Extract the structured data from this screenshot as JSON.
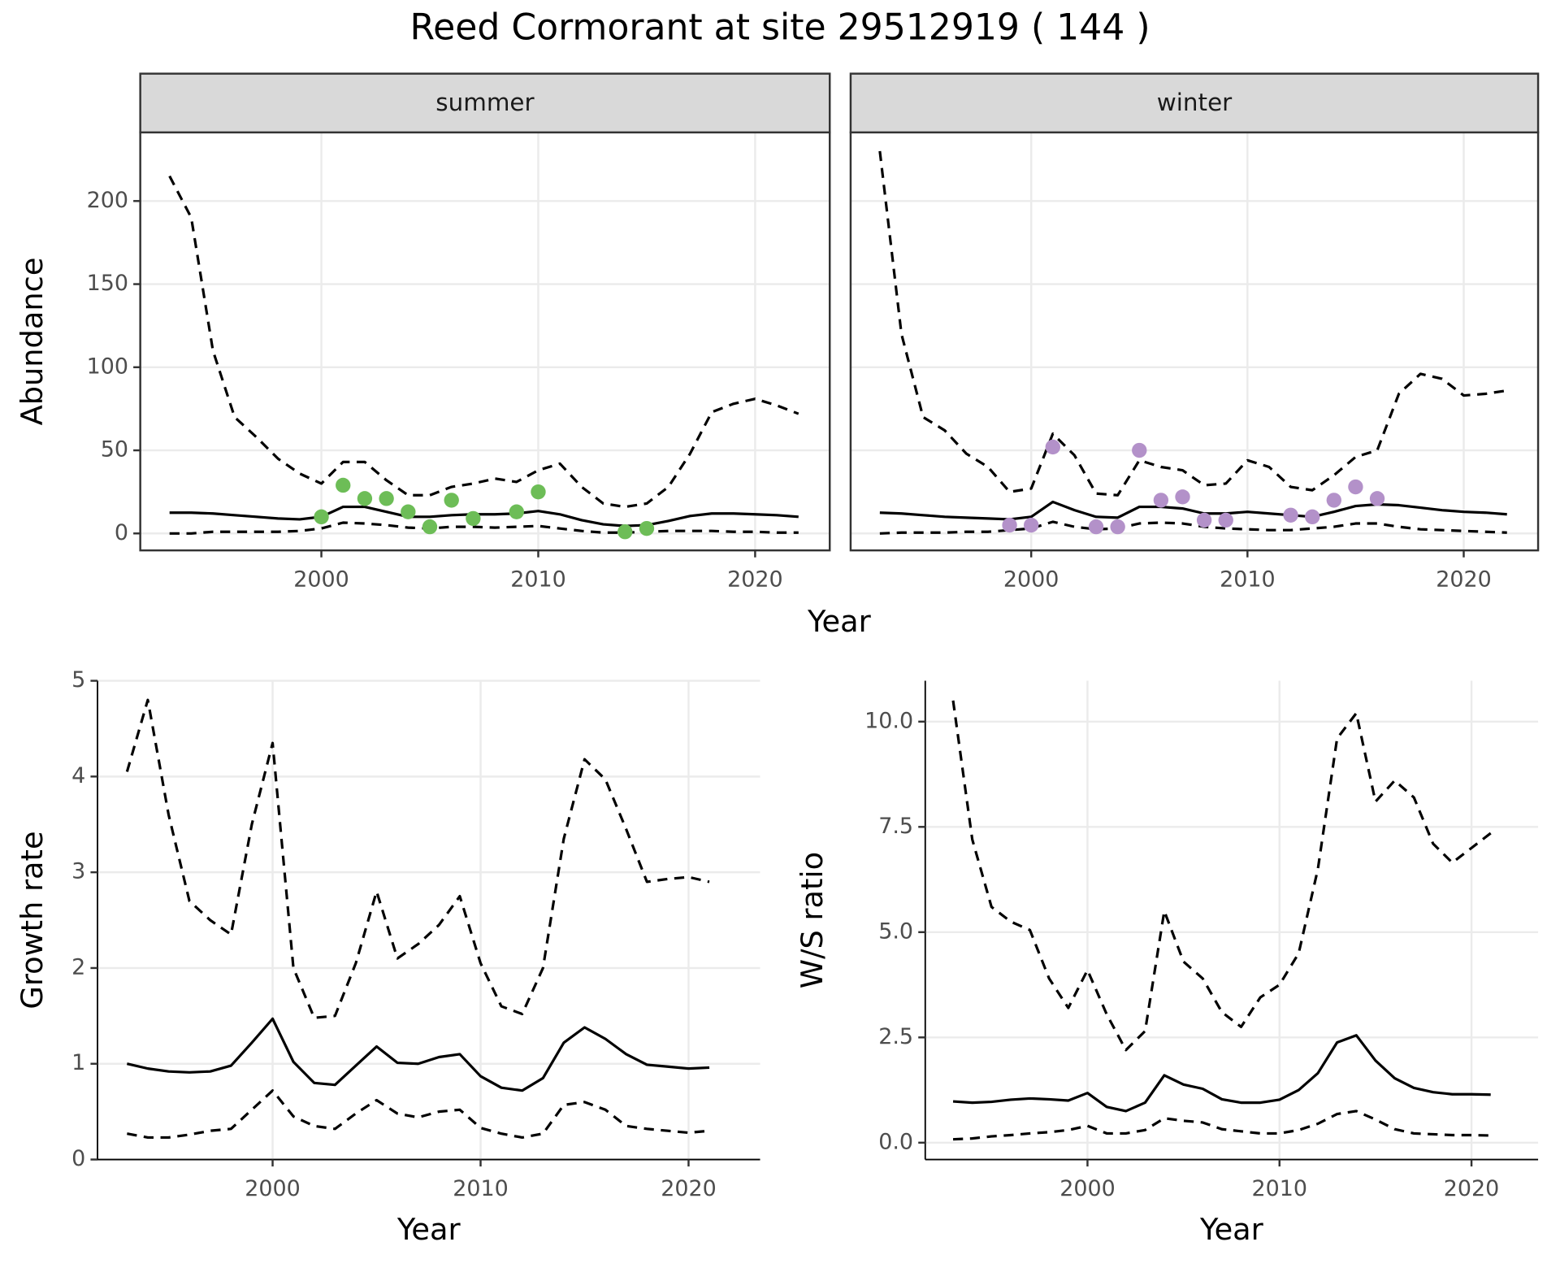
{
  "title": "Reed Cormorant at site 29512919 ( 144 )",
  "chart_data": [
    {
      "type": "line",
      "y_label": "Abundance",
      "x_label": "Year",
      "border": true,
      "grid": true,
      "xlim": [
        1991.65,
        2023.44
      ],
      "ylim": [
        -10.2,
        241.3
      ],
      "xticks": [
        2000,
        2010,
        2020
      ],
      "yticks": [
        0,
        50,
        100,
        150,
        200
      ],
      "facets": [
        {
          "label": "summer",
          "x": [
            1993,
            1994,
            1995,
            1996,
            1997,
            1998,
            1999,
            2000,
            2001,
            2002,
            2003,
            2004,
            2005,
            2006,
            2007,
            2008,
            2009,
            2010,
            2011,
            2012,
            2013,
            2014,
            2015,
            2016,
            2017,
            2018,
            2019,
            2020,
            2021,
            2022
          ],
          "series": [
            {
              "style": "solid",
              "color": "#000000",
              "values": [
                12.5,
                12.5,
                12,
                11,
                10,
                9,
                8.5,
                10,
                16,
                16,
                13,
                10,
                10,
                11,
                11.5,
                11.5,
                12,
                13.5,
                11.5,
                8,
                5.5,
                4.5,
                5,
                7.5,
                10.5,
                12,
                12,
                11.5,
                11,
                10
              ]
            },
            {
              "style": "dashed",
              "color": "#000000",
              "values": [
                215,
                190,
                110,
                70,
                58,
                45,
                36,
                30,
                43,
                43,
                32,
                23,
                23,
                28,
                30,
                33,
                31,
                38,
                42,
                28,
                18,
                16,
                18,
                28,
                48,
                73,
                78,
                81,
                77,
                72
              ]
            },
            {
              "style": "dashed",
              "color": "#000000",
              "values": [
                0,
                0,
                1,
                1,
                1,
                1,
                1.5,
                3,
                6.5,
                6,
                5,
                3.5,
                3,
                4,
                4,
                3.5,
                4,
                4.5,
                3,
                1.5,
                0.5,
                0.5,
                1,
                1.5,
                1.5,
                1.5,
                1,
                1,
                0.5,
                0.5
              ]
            }
          ],
          "points": {
            "color": "#6dbd57",
            "x": [
              2000,
              2001,
              2002,
              2003,
              2004,
              2005,
              2006,
              2007,
              2009,
              2010,
              2014,
              2015
            ],
            "values": [
              10,
              29,
              21,
              21,
              13,
              4,
              20,
              9,
              13,
              25,
              1,
              3
            ]
          }
        },
        {
          "label": "winter",
          "x": [
            1993,
            1994,
            1995,
            1996,
            1997,
            1998,
            1999,
            2000,
            2001,
            2002,
            2003,
            2004,
            2005,
            2006,
            2007,
            2008,
            2009,
            2010,
            2011,
            2012,
            2013,
            2014,
            2015,
            2016,
            2017,
            2018,
            2019,
            2020,
            2021,
            2022
          ],
          "series": [
            {
              "style": "solid",
              "color": "#000000",
              "values": [
                12.5,
                12,
                11,
                10,
                9.5,
                9,
                8.5,
                10,
                19,
                14,
                10,
                9.5,
                16,
                16,
                15,
                12,
                12,
                13,
                12,
                11,
                10,
                13,
                16.5,
                17.5,
                17,
                15.5,
                14,
                13,
                12.5,
                11.5
              ]
            },
            {
              "style": "dashed",
              "color": "#000000",
              "values": [
                230,
                120,
                70,
                62,
                48,
                40,
                25,
                27,
                60,
                47,
                24,
                23,
                44,
                40,
                38,
                29,
                30,
                44,
                40,
                28,
                26,
                35,
                46,
                50,
                84,
                96,
                93,
                83,
                84,
                86
              ]
            },
            {
              "style": "dashed",
              "color": "#000000",
              "values": [
                0,
                0.5,
                0.5,
                0.5,
                1,
                1,
                2,
                3,
                7,
                4,
                2.5,
                3,
                6,
                6.5,
                6,
                4,
                3,
                2.5,
                2,
                2,
                3,
                4,
                6,
                6,
                4,
                2.5,
                2,
                1.5,
                1,
                0.5
              ]
            }
          ],
          "points": {
            "color": "#b391c9",
            "x": [
              1999,
              2000,
              2001,
              2003,
              2004,
              2005,
              2006,
              2007,
              2008,
              2009,
              2012,
              2013,
              2014,
              2015,
              2016
            ],
            "values": [
              5,
              5,
              52,
              4,
              4,
              50,
              20,
              22,
              8,
              8,
              11,
              10,
              20,
              28,
              21
            ]
          }
        }
      ]
    },
    {
      "type": "line",
      "y_label": "Growth rate",
      "x_label": "Year",
      "border": false,
      "grid": true,
      "xlim": [
        1991.58,
        2023.44
      ],
      "ylim": [
        0,
        5
      ],
      "xticks": [
        2000,
        2010,
        2020
      ],
      "yticks": [
        0,
        1,
        2,
        3,
        4,
        5
      ],
      "x": [
        1993,
        1994,
        1995,
        1996,
        1997,
        1998,
        1999,
        2000,
        2001,
        2002,
        2003,
        2004,
        2005,
        2006,
        2007,
        2008,
        2009,
        2010,
        2011,
        2012,
        2013,
        2014,
        2015,
        2016,
        2017,
        2018,
        2019,
        2020,
        2021
      ],
      "series": [
        {
          "style": "solid",
          "color": "#000000",
          "values": [
            1.0,
            0.95,
            0.92,
            0.91,
            0.92,
            0.98,
            1.22,
            1.47,
            1.02,
            0.8,
            0.78,
            0.98,
            1.18,
            1.01,
            1.0,
            1.07,
            1.1,
            0.87,
            0.75,
            0.72,
            0.85,
            1.22,
            1.38,
            1.26,
            1.1,
            0.99,
            0.97,
            0.95,
            0.96
          ]
        },
        {
          "style": "dashed",
          "color": "#000000",
          "values": [
            4.05,
            4.8,
            3.6,
            2.7,
            2.5,
            2.35,
            3.5,
            4.35,
            2.0,
            1.48,
            1.5,
            2.05,
            2.8,
            2.1,
            2.25,
            2.45,
            2.75,
            2.05,
            1.6,
            1.52,
            2.0,
            3.35,
            4.18,
            3.97,
            3.45,
            2.9,
            2.93,
            2.95,
            2.9
          ]
        },
        {
          "style": "dashed",
          "color": "#000000",
          "values": [
            0.27,
            0.23,
            0.23,
            0.26,
            0.3,
            0.32,
            0.52,
            0.72,
            0.45,
            0.35,
            0.32,
            0.48,
            0.62,
            0.48,
            0.44,
            0.5,
            0.52,
            0.33,
            0.27,
            0.23,
            0.27,
            0.57,
            0.6,
            0.52,
            0.35,
            0.32,
            0.3,
            0.28,
            0.3
          ]
        }
      ]
    },
    {
      "type": "line",
      "y_label": "W/S ratio",
      "x_label": "Year",
      "border": false,
      "grid": true,
      "xlim": [
        1991.55,
        2023.47
      ],
      "ylim": [
        -0.4,
        10.97
      ],
      "xticks": [
        2000,
        2010,
        2020
      ],
      "yticks": [
        {
          "value": 0,
          "label": "0.0"
        },
        2.5,
        {
          "value": 5,
          "label": "5.0"
        },
        7.5,
        {
          "value": 10,
          "label": "10.0"
        }
      ],
      "x": [
        1993,
        1994,
        1995,
        1996,
        1997,
        1998,
        1999,
        2000,
        2001,
        2002,
        2003,
        2004,
        2005,
        2006,
        2007,
        2008,
        2009,
        2010,
        2011,
        2012,
        2013,
        2014,
        2015,
        2016,
        2017,
        2018,
        2019,
        2020,
        2021
      ],
      "series": [
        {
          "style": "solid",
          "color": "#000000",
          "values": [
            0.98,
            0.95,
            0.97,
            1.02,
            1.05,
            1.03,
            1.0,
            1.18,
            0.85,
            0.75,
            0.95,
            1.6,
            1.38,
            1.28,
            1.03,
            0.95,
            0.95,
            1.02,
            1.25,
            1.65,
            2.38,
            2.55,
            1.95,
            1.53,
            1.3,
            1.2,
            1.15,
            1.15,
            1.14
          ]
        },
        {
          "style": "dashed",
          "color": "#000000",
          "values": [
            10.5,
            7.2,
            5.6,
            5.25,
            5.05,
            3.9,
            3.2,
            4.1,
            3.05,
            2.2,
            2.65,
            5.5,
            4.3,
            3.9,
            3.1,
            2.75,
            3.45,
            3.75,
            4.5,
            6.5,
            9.6,
            10.2,
            8.1,
            8.6,
            8.2,
            7.1,
            6.65,
            7.0,
            7.35
          ]
        },
        {
          "style": "dashed",
          "color": "#000000",
          "values": [
            0.08,
            0.1,
            0.15,
            0.18,
            0.22,
            0.25,
            0.3,
            0.4,
            0.22,
            0.22,
            0.3,
            0.58,
            0.52,
            0.48,
            0.32,
            0.27,
            0.22,
            0.22,
            0.3,
            0.45,
            0.68,
            0.75,
            0.55,
            0.32,
            0.22,
            0.2,
            0.18,
            0.18,
            0.17
          ]
        }
      ]
    }
  ]
}
